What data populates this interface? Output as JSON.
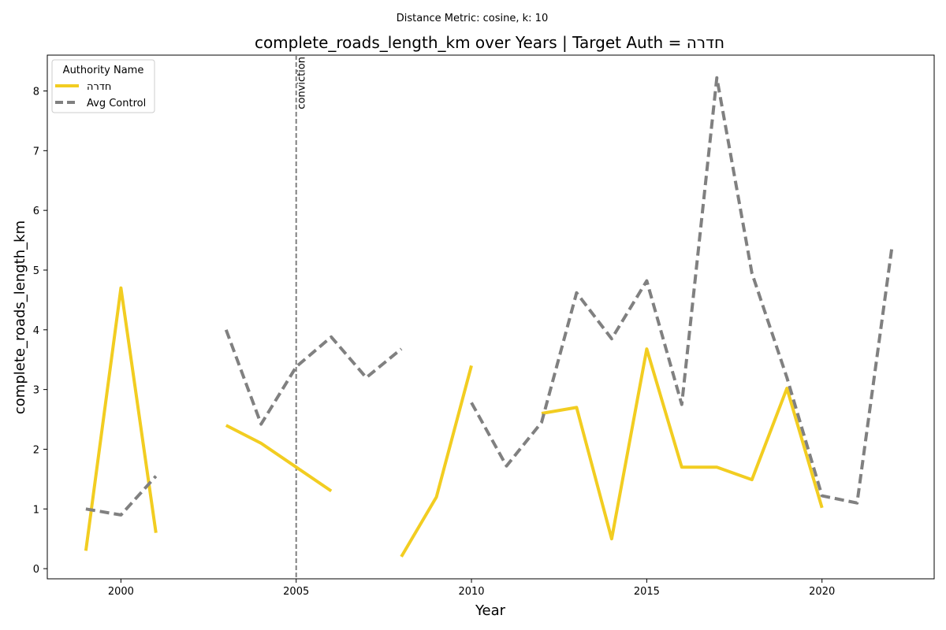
{
  "suptitle": "Distance Metric: cosine, k: 10",
  "chart_data": {
    "type": "line",
    "title": "complete_roads_length_km over Years | Target Auth = חדרה",
    "xlabel": "Year",
    "ylabel": "complete_roads_length_km",
    "xlim": [
      1997.9,
      2023.2
    ],
    "ylim": [
      -0.17,
      8.6
    ],
    "x_ticks": [
      2000,
      2005,
      2010,
      2015,
      2020
    ],
    "y_ticks": [
      0,
      1,
      2,
      3,
      4,
      5,
      6,
      7,
      8
    ],
    "grid": false,
    "legend": {
      "title": "Authority Name",
      "placement": "top-left"
    },
    "annotations": [
      {
        "type": "vline",
        "x": 2005,
        "label": "conviction",
        "style": "dashed",
        "color": "#808080"
      }
    ],
    "series": [
      {
        "name": "חדרה",
        "color": "#f2cd21",
        "style": "solid",
        "points": [
          [
            1999,
            0.3
          ],
          [
            2000,
            4.7
          ],
          [
            2001,
            0.6
          ],
          [
            2002,
            null
          ],
          [
            2003,
            2.4
          ],
          [
            2004,
            2.1
          ],
          [
            2005,
            1.7
          ],
          [
            2006,
            1.3
          ],
          [
            2007,
            null
          ],
          [
            2008,
            0.2
          ],
          [
            2009,
            1.2
          ],
          [
            2010,
            3.4
          ],
          [
            2011,
            null
          ],
          [
            2012,
            2.6
          ],
          [
            2013,
            2.7
          ],
          [
            2014,
            0.5
          ],
          [
            2015,
            3.68
          ],
          [
            2016,
            1.7
          ],
          [
            2017,
            1.7
          ],
          [
            2018,
            1.49
          ],
          [
            2019,
            3.02
          ],
          [
            2020,
            1.02
          ]
        ]
      },
      {
        "name": "Avg Control",
        "color": "#808080",
        "style": "dashed",
        "points": [
          [
            1999,
            1.0
          ],
          [
            2000,
            0.9
          ],
          [
            2001,
            1.55
          ],
          [
            2002,
            null
          ],
          [
            2003,
            4.0
          ],
          [
            2004,
            2.42
          ],
          [
            2005,
            3.38
          ],
          [
            2006,
            3.88
          ],
          [
            2007,
            3.2
          ],
          [
            2008,
            3.68
          ],
          [
            2009,
            null
          ],
          [
            2010,
            2.78
          ],
          [
            2011,
            1.72
          ],
          [
            2012,
            2.45
          ],
          [
            2013,
            4.62
          ],
          [
            2014,
            3.85
          ],
          [
            2015,
            4.82
          ],
          [
            2016,
            2.75
          ],
          [
            2017,
            8.22
          ],
          [
            2018,
            4.95
          ],
          [
            2019,
            3.2
          ],
          [
            2020,
            1.22
          ],
          [
            2021,
            1.1
          ],
          [
            2022,
            5.4
          ]
        ]
      }
    ]
  }
}
